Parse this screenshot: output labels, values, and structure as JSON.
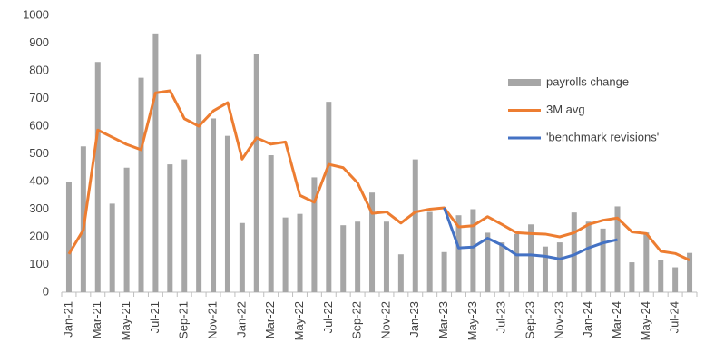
{
  "chart_data": {
    "type": "bar",
    "categories": [
      "Jan-21",
      null,
      "Mar-21",
      null,
      "May-21",
      null,
      "Jul-21",
      null,
      "Sep-21",
      null,
      "Nov-21",
      null,
      "Jan-22",
      null,
      "Mar-22",
      null,
      "May-22",
      null,
      "Jul-22",
      null,
      "Sep-22",
      null,
      "Nov-22",
      null,
      "Jan-23",
      null,
      "Mar-23",
      null,
      "May-23",
      null,
      "Jul-23",
      null,
      "Sep-23",
      null,
      "Nov-23",
      null,
      "Jan-24",
      null,
      "Mar-24",
      null,
      "May-24",
      null,
      "Jul-24",
      null
    ],
    "series": [
      {
        "name": "payrolls change",
        "type": "bar",
        "color": "#a6a6a6",
        "values": [
          400,
          527,
          832,
          320,
          450,
          775,
          935,
          462,
          480,
          858,
          628,
          565,
          250,
          862,
          495,
          270,
          283,
          415,
          688,
          242,
          255,
          360,
          255,
          137,
          480,
          290,
          145,
          278,
          300,
          215,
          180,
          210,
          245,
          165,
          180,
          288,
          255,
          230,
          310,
          108,
          216,
          118,
          90,
          142
        ]
      },
      {
        "name": "3M avg",
        "type": "line",
        "color": "#ed7d31",
        "values": [
          138,
          225,
          586,
          560,
          534,
          515,
          720,
          728,
          627,
          600,
          655,
          685,
          481,
          558,
          535,
          543,
          350,
          325,
          462,
          450,
          395,
          285,
          290,
          250,
          290,
          300,
          305,
          236,
          240,
          273,
          245,
          215,
          212,
          210,
          200,
          215,
          245,
          260,
          268,
          218,
          212,
          148,
          140,
          116
        ]
      },
      {
        "name": "'benchmark revisions'",
        "type": "line",
        "color": "#4472c4",
        "values": [
          null,
          null,
          null,
          null,
          null,
          null,
          null,
          null,
          null,
          null,
          null,
          null,
          null,
          null,
          null,
          null,
          null,
          null,
          null,
          null,
          null,
          null,
          null,
          null,
          null,
          null,
          305,
          160,
          163,
          195,
          170,
          135,
          135,
          130,
          120,
          135,
          160,
          178,
          190,
          null,
          null,
          null,
          null,
          null
        ]
      }
    ],
    "ylim": [
      0,
      1000
    ],
    "yticks": [
      0,
      100,
      200,
      300,
      400,
      500,
      600,
      700,
      800,
      900,
      1000
    ],
    "grid": false,
    "legend": "upper right"
  }
}
